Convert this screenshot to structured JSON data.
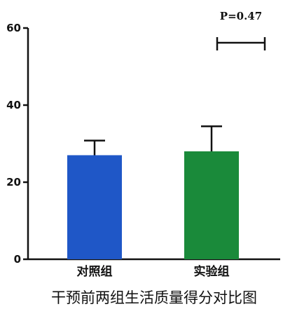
{
  "chart_data": {
    "type": "bar",
    "title": "干预前两组生活质量得分对比图",
    "categories": [
      "对照组",
      "实验组"
    ],
    "values": [
      27,
      28
    ],
    "error": [
      3.8,
      6.5
    ],
    "ylim": [
      0,
      60
    ],
    "yticks": [
      0,
      20,
      40,
      60
    ],
    "colors": [
      "#1f57c7",
      "#1a8a3a"
    ],
    "annotation": "P=0.47"
  }
}
